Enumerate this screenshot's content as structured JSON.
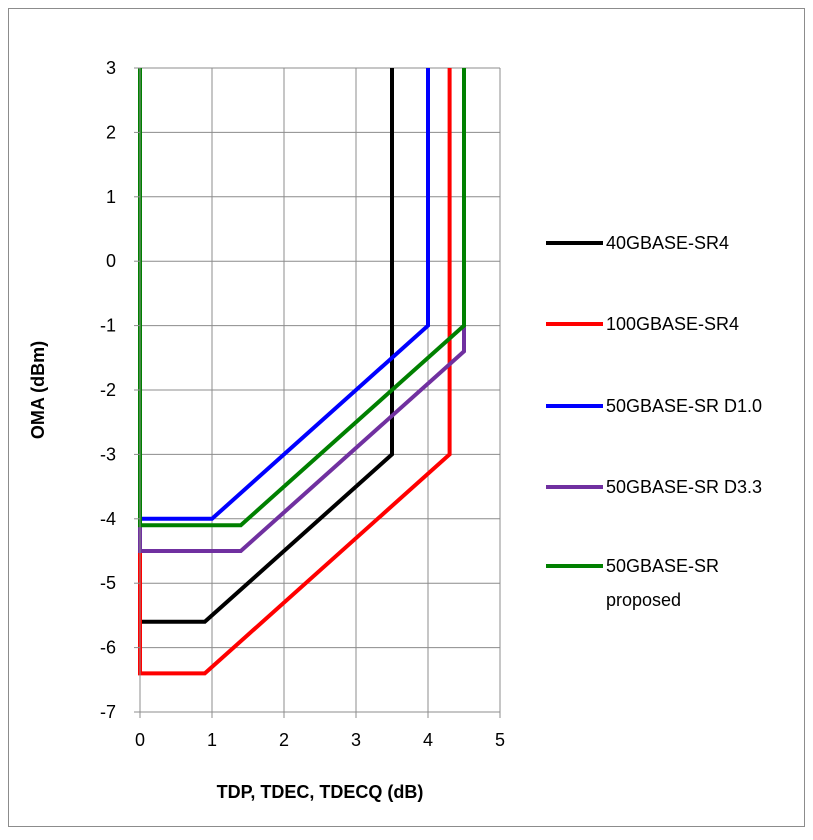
{
  "chart_data": {
    "type": "line",
    "xlabel": "TDP, TDEC, TDECQ (dB)",
    "ylabel": "OMA (dBm)",
    "xlim": [
      0,
      5
    ],
    "ylim": [
      -7,
      3
    ],
    "xticks": [
      "0",
      "1",
      "2",
      "3",
      "4",
      "5"
    ],
    "yticks": [
      "3",
      "2",
      "1",
      "0",
      "-1",
      "-2",
      "-3",
      "-4",
      "-5",
      "-6",
      "-7"
    ],
    "grid": true,
    "legend_position": "right",
    "series": [
      {
        "name": "40GBASE-SR4",
        "color": "#000000",
        "points": [
          [
            0,
            3
          ],
          [
            0,
            -5.6
          ],
          [
            0.9,
            -5.6
          ],
          [
            3.5,
            -3
          ],
          [
            3.5,
            3
          ]
        ]
      },
      {
        "name": "100GBASE-SR4",
        "color": "#ff0000",
        "points": [
          [
            0,
            3
          ],
          [
            0,
            -6.4
          ],
          [
            0.9,
            -6.4
          ],
          [
            4.3,
            -3
          ],
          [
            4.3,
            3
          ]
        ]
      },
      {
        "name": "50GBASE-SR D1.0",
        "color": "#0000ff",
        "points": [
          [
            0,
            3
          ],
          [
            0,
            -4
          ],
          [
            1,
            -4
          ],
          [
            4,
            -1
          ],
          [
            4,
            3
          ]
        ]
      },
      {
        "name": "50GBASE-SR D3.3",
        "color": "#7030a0",
        "points": [
          [
            0,
            3
          ],
          [
            0,
            -4.5
          ],
          [
            1.4,
            -4.5
          ],
          [
            4.5,
            -1.4
          ],
          [
            4.5,
            3
          ]
        ]
      },
      {
        "name": "50GBASE-SR proposed",
        "name_lines": [
          "50GBASE-SR",
          "proposed"
        ],
        "color": "#008000",
        "points": [
          [
            0,
            3
          ],
          [
            0,
            -4.1
          ],
          [
            1.4,
            -4.1
          ],
          [
            4.5,
            -1
          ],
          [
            4.5,
            3
          ]
        ]
      }
    ]
  }
}
